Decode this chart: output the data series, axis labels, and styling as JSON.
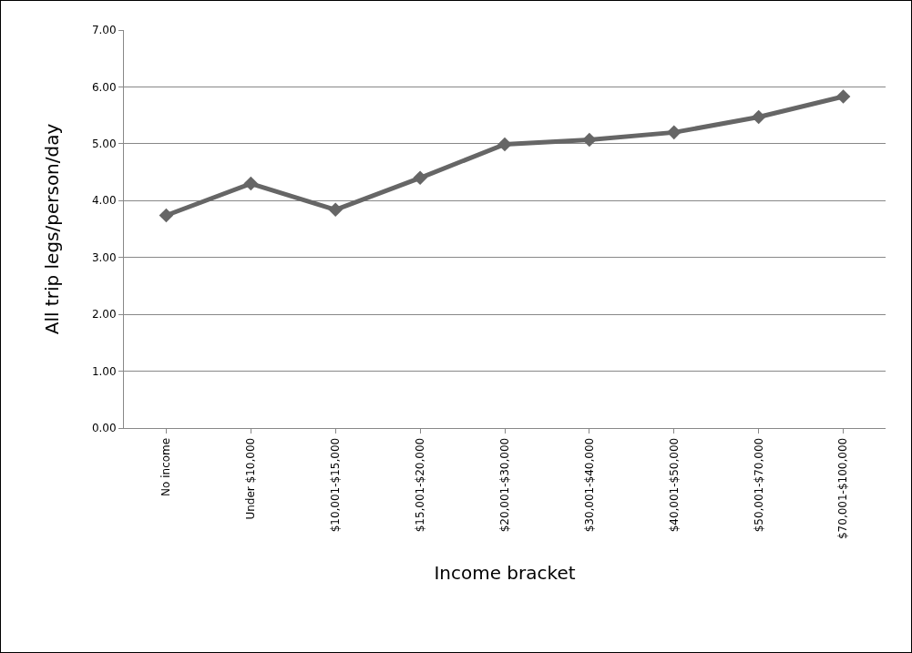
{
  "chart_data": {
    "type": "line",
    "xlabel": "Income bracket",
    "ylabel": "All trip legs/person/day",
    "categories": [
      "No income",
      "Under $10,000",
      "$10,001-$15,000",
      "$15,001-$20,000",
      "$20,001-$30,000",
      "$30,001-$40,000",
      "$40,001-$50,000",
      "$50,001-$70,000",
      "$70,001-$100,000"
    ],
    "series": [
      {
        "color": "#666666",
        "values": [
          3.74,
          4.3,
          3.84,
          4.4,
          4.99,
          5.07,
          5.2,
          5.47,
          5.83
        ]
      }
    ],
    "ylim": [
      0,
      7
    ],
    "yticks": [
      {
        "value": 0,
        "label": "0.00"
      },
      {
        "value": 1,
        "label": "1.00"
      },
      {
        "value": 2,
        "label": "2.00"
      },
      {
        "value": 3,
        "label": "3.00"
      },
      {
        "value": 4,
        "label": "4.00"
      },
      {
        "value": 5,
        "label": "5.00"
      },
      {
        "value": 6,
        "label": "6.00"
      },
      {
        "value": 7,
        "label": "7.00"
      }
    ],
    "grid": "y",
    "marker": "diamond",
    "line_style": "solid"
  }
}
